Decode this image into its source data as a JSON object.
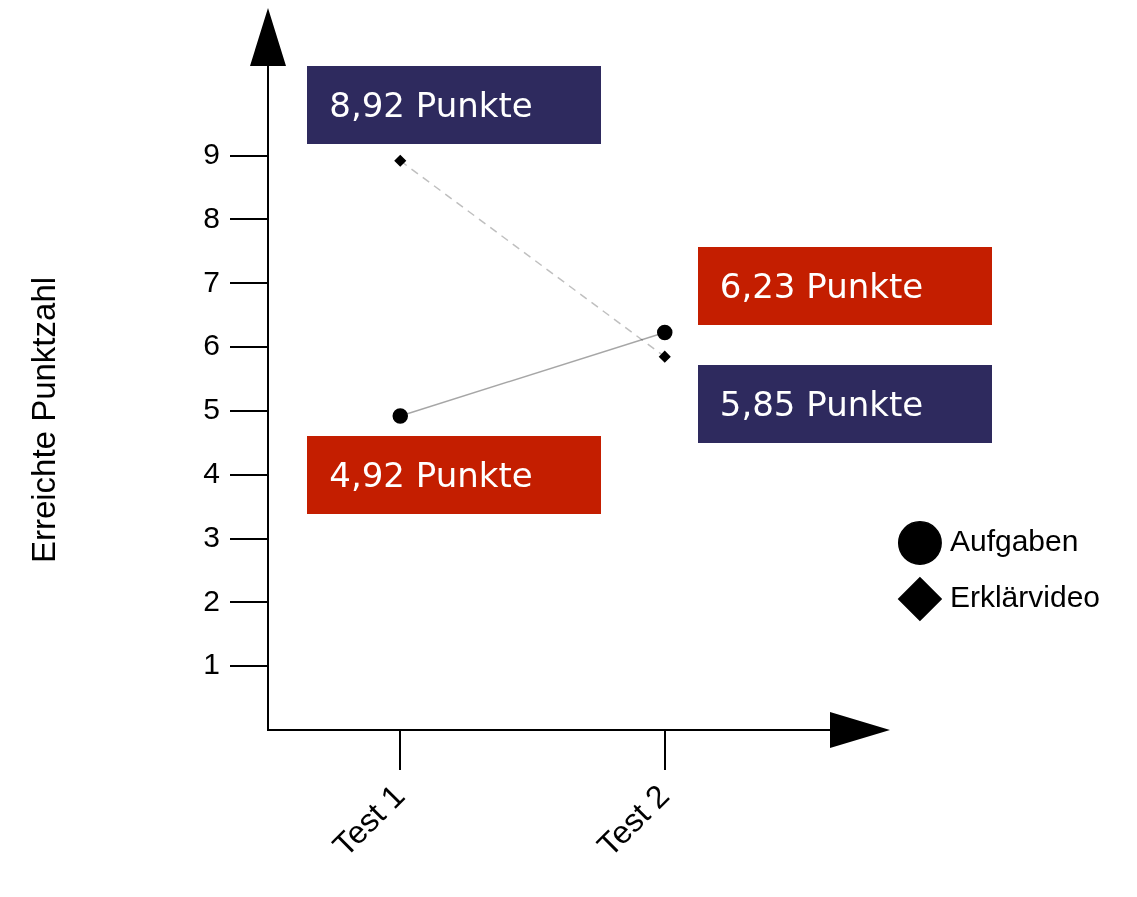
{
  "chart_data": {
    "type": "line",
    "ylabel": "Erreichte Punktzahl",
    "categories": [
      "Test 1",
      "Test 2"
    ],
    "ylim": [
      0,
      11
    ],
    "yticks": [
      1,
      2,
      3,
      4,
      5,
      6,
      7,
      8,
      9
    ],
    "grid": false,
    "legend": "bottom right",
    "series": [
      {
        "name": "Aufgaben",
        "color": "#000000",
        "values": [
          4.92,
          6.23
        ],
        "value_labels": [
          "4,92 Punkte",
          "6,23 Punkte"
        ],
        "marker": "circle",
        "line_style": "solid"
      },
      {
        "name": "Erklärvideo",
        "color": "#000000",
        "values": [
          8.92,
          5.85
        ],
        "value_labels": [
          "8,92 Punkte",
          "5,85 Punkte"
        ],
        "marker": "diamond",
        "line_style": "dashed"
      }
    ]
  }
}
